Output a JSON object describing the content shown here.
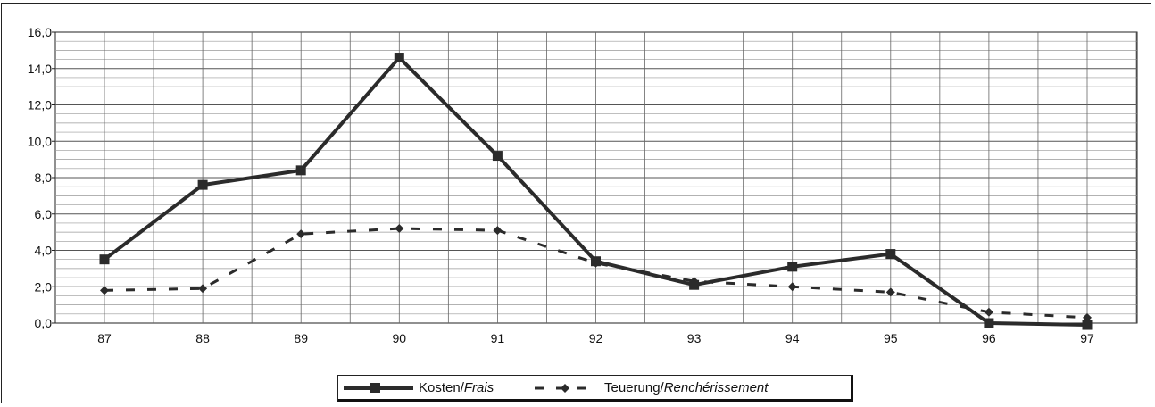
{
  "chart_data": {
    "type": "line",
    "categories": [
      "87",
      "88",
      "89",
      "90",
      "91",
      "92",
      "93",
      "94",
      "95",
      "96",
      "97"
    ],
    "series": [
      {
        "name_main": "Kosten/",
        "name_italic": "Frais",
        "values": [
          3.5,
          7.6,
          8.4,
          14.6,
          9.2,
          3.4,
          2.1,
          3.1,
          3.8,
          0.0,
          -0.1
        ],
        "style": "solid",
        "marker": "square",
        "color": "#2b2b2b"
      },
      {
        "name_main": "Teuerung/",
        "name_italic": "Renchérissement",
        "values": [
          1.8,
          1.9,
          4.9,
          5.2,
          5.1,
          3.3,
          2.3,
          2.0,
          1.7,
          0.6,
          0.3
        ],
        "style": "dashed",
        "marker": "diamond",
        "color": "#2b2b2b"
      }
    ],
    "yticks": [
      "16,0",
      "14,0",
      "12,0",
      "10,0",
      "8,0",
      "6,0",
      "4,0",
      "2,0",
      "0,0"
    ],
    "ylim": [
      0,
      16
    ],
    "grid": true,
    "legend_position": "bottom-center"
  }
}
